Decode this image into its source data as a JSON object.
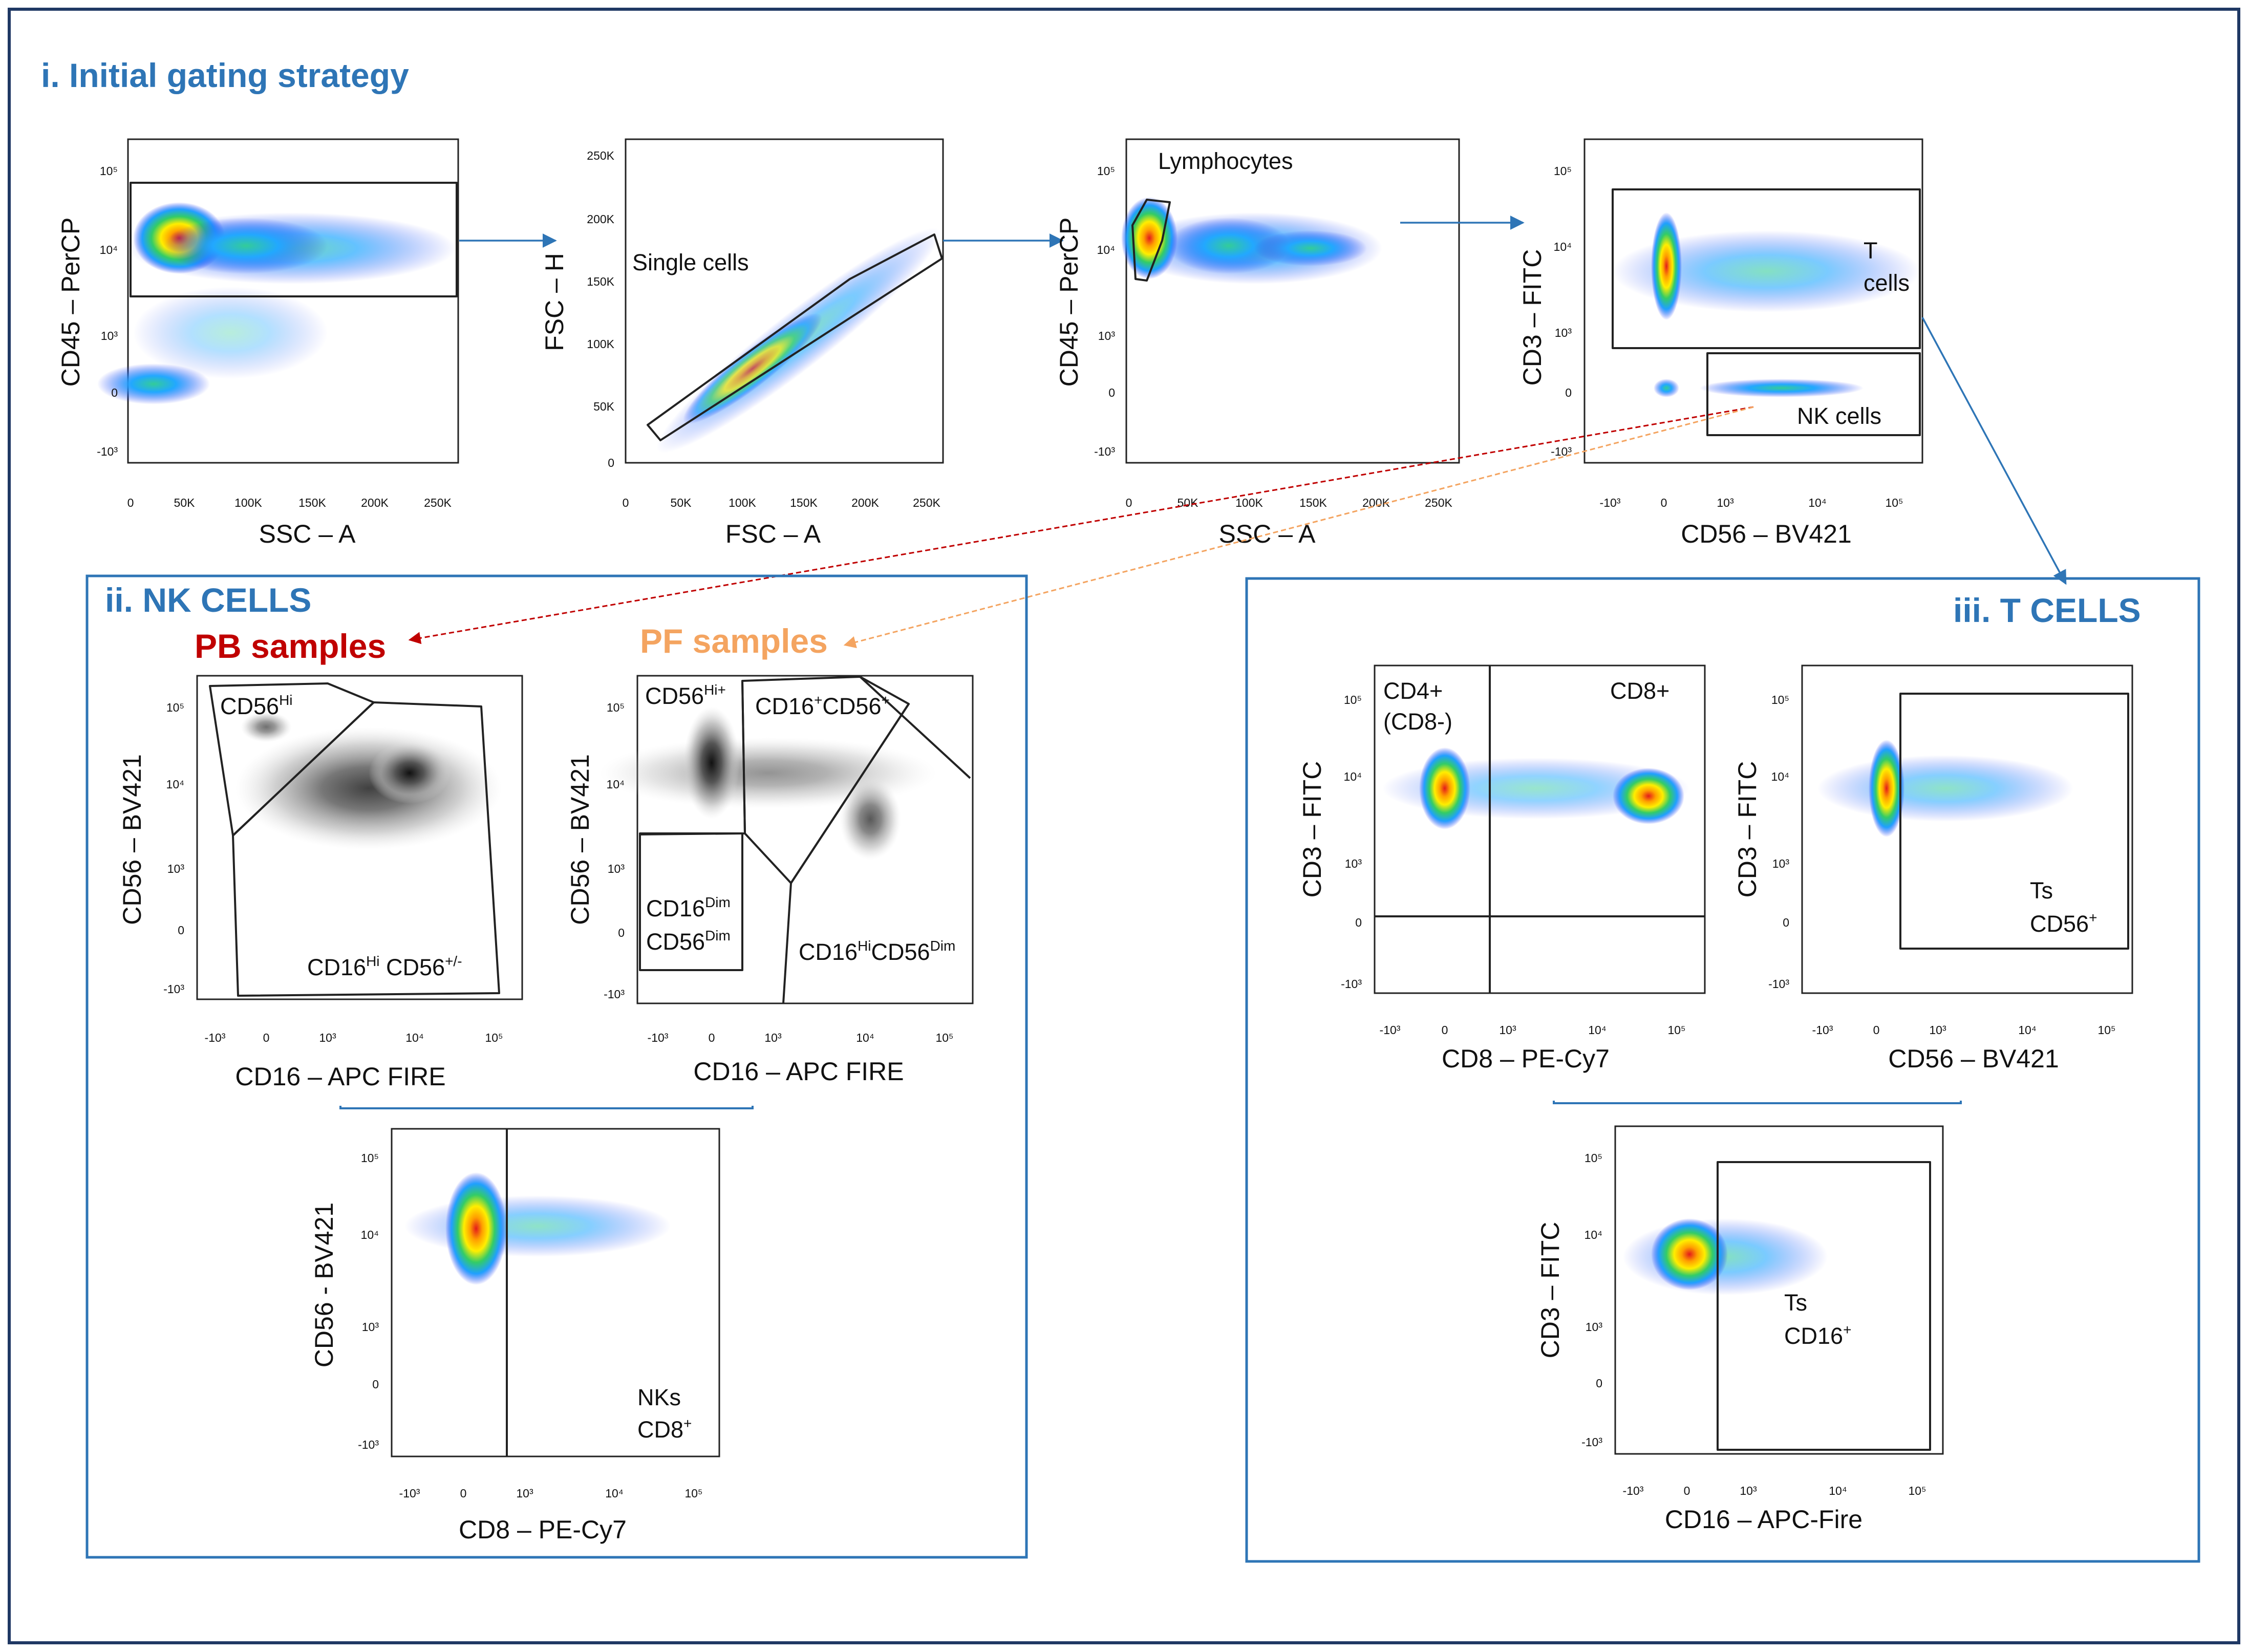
{
  "sections": {
    "initial": "i. Initial gating strategy",
    "nk": "ii. NK CELLS",
    "t": "iii. T CELLS",
    "pb": "PB samples",
    "pf": "PF samples"
  },
  "axes": {
    "cd45_percp": "CD45 – PerCP",
    "ssc_a": "SSC – A",
    "fsc_h": "FSC – H",
    "fsc_a": "FSC – A",
    "cd3_fitc": "CD3 – FITC",
    "cd56_bv421": "CD56 – BV421",
    "cd56_bv421_dash": "CD56 - BV421",
    "cd16_apc_fire": "CD16 – APC FIRE",
    "cd16_apc_fire_mixed": "CD16 – APC-Fire",
    "cd8_pecy7": "CD8 – PE-Cy7"
  },
  "gates": {
    "single_cells": "Single cells",
    "lymphocytes": "Lymphocytes",
    "t_cells_1": "T",
    "t_cells_2": "cells",
    "nk_cells": "NK cells",
    "cd56hi_base": "CD56",
    "cd56hi_sup": "Hi",
    "cd16hi_a": "CD16",
    "cd16hi_a_sup": "Hi",
    "cd16hi_b": " CD56",
    "cd16hi_b_sup": "+/-",
    "cd56hiplus_sup": "Hi+",
    "cd16p_base": "CD16",
    "cd16p_sup": "+",
    "cd56p_base": "CD56",
    "cd56p_sup": "+",
    "dim_sup": "Dim",
    "hi_sup": "Hi",
    "cd4": "CD4+",
    "cd8neg": "(CD8-)",
    "cd8plus": "CD8+",
    "ts": "Ts",
    "plus": "+",
    "nks": "NKs",
    "cd8": "CD8"
  },
  "ticks": {
    "log": [
      "10⁵",
      "10⁴",
      "10³",
      "0",
      "-10³"
    ],
    "log_x": [
      "-10³",
      "0",
      "10³",
      "10⁴",
      "10⁵"
    ],
    "lin_x": [
      "0",
      "50K",
      "100K",
      "150K",
      "200K",
      "250K"
    ],
    "lin_y": [
      "250K",
      "200K",
      "150K",
      "100K",
      "50K",
      "0"
    ]
  },
  "colors": {
    "section_blue": "#2e75b6",
    "pb_red": "#c00000",
    "pf_orange": "#f4a460",
    "outer_border": "#1f3864"
  }
}
